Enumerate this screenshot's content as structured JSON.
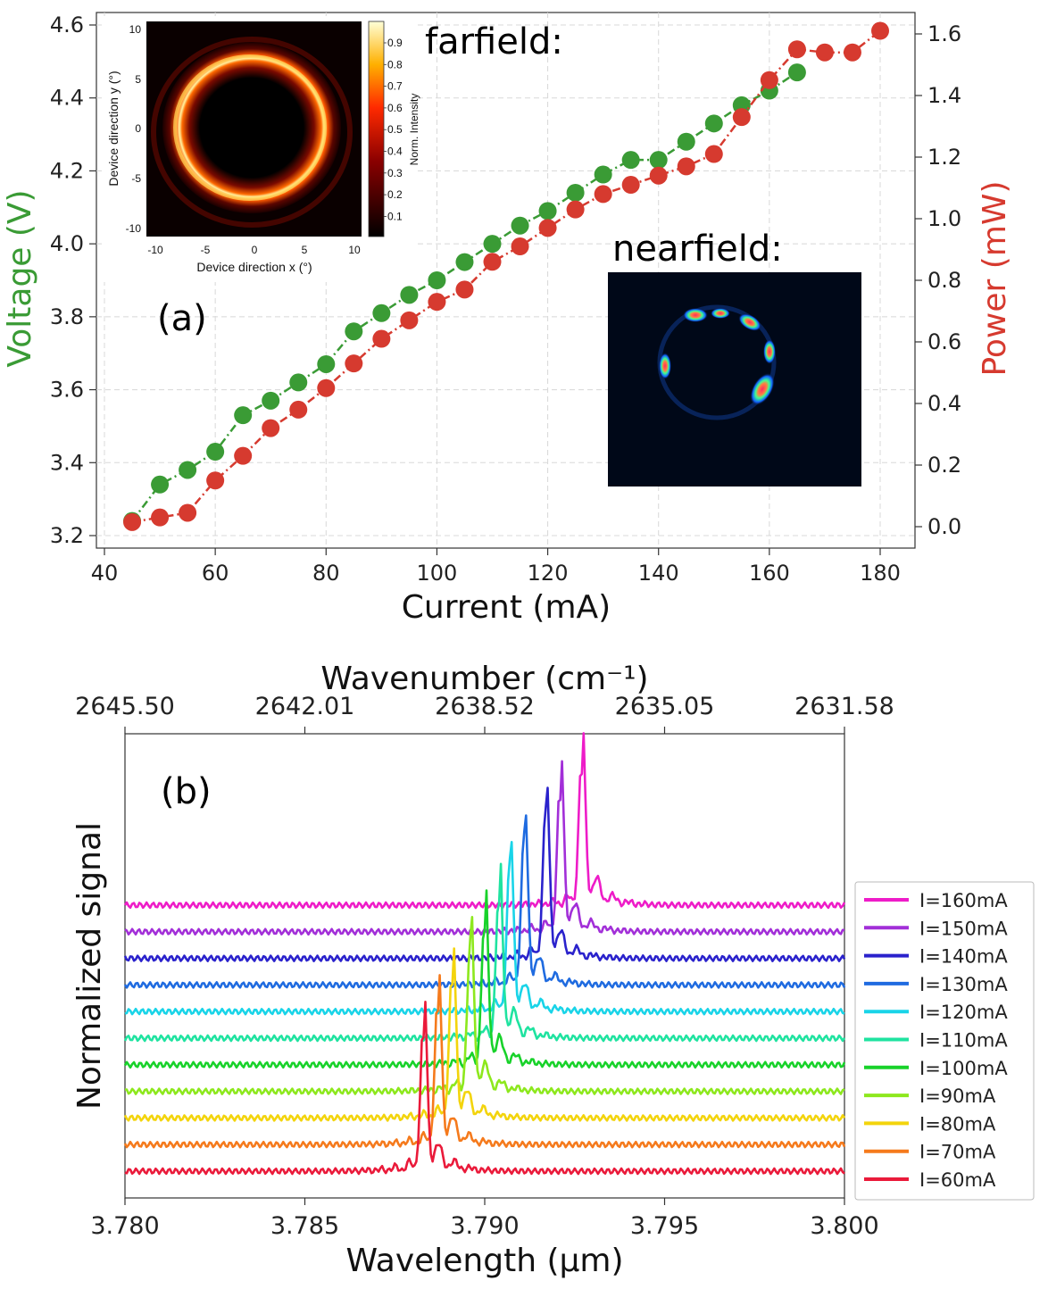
{
  "chart_data": [
    {
      "id": "a",
      "type": "line",
      "panel_label": "(a)",
      "xlabel": "Current (mA)",
      "ylabel_left": "Voltage (V)",
      "ylabel_right": "Power (mW)",
      "xlim": [
        40,
        185
      ],
      "ylim_left": [
        3.2,
        4.6
      ],
      "ylim_right": [
        0.0,
        1.6
      ],
      "xticks": [
        "40",
        "60",
        "80",
        "100",
        "120",
        "140",
        "160",
        "180"
      ],
      "yticks_left": [
        "3.2",
        "3.4",
        "3.6",
        "3.8",
        "4.0",
        "4.2",
        "4.4",
        "4.6"
      ],
      "yticks_right": [
        "0.0",
        "0.2",
        "0.4",
        "0.6",
        "0.8",
        "1.0",
        "1.2",
        "1.4",
        "1.6"
      ],
      "grid": true,
      "colors": {
        "voltage": "#3a9b35",
        "power": "#d63a2f"
      },
      "series": [
        {
          "name": "Voltage",
          "axis": "left",
          "x": [
            45,
            50,
            55,
            60,
            65,
            70,
            75,
            80,
            85,
            90,
            95,
            100,
            105,
            110,
            115,
            120,
            125,
            130,
            135,
            140,
            145,
            150,
            155,
            160,
            165
          ],
          "values": [
            3.24,
            3.34,
            3.38,
            3.43,
            3.53,
            3.57,
            3.62,
            3.67,
            3.76,
            3.81,
            3.86,
            3.9,
            3.95,
            4.0,
            4.05,
            4.09,
            4.14,
            4.19,
            4.23,
            4.23,
            4.28,
            4.33,
            4.38,
            4.42,
            4.47
          ]
        },
        {
          "name": "Power",
          "axis": "right",
          "x": [
            45,
            50,
            55,
            60,
            65,
            70,
            75,
            80,
            85,
            90,
            95,
            100,
            105,
            110,
            115,
            120,
            125,
            130,
            135,
            140,
            145,
            150,
            155,
            160,
            165,
            170,
            175,
            180
          ],
          "values": [
            0.015,
            0.03,
            0.045,
            0.15,
            0.23,
            0.32,
            0.38,
            0.45,
            0.53,
            0.61,
            0.67,
            0.73,
            0.77,
            0.86,
            0.91,
            0.97,
            1.03,
            1.08,
            1.11,
            1.14,
            1.17,
            1.21,
            1.33,
            1.45,
            1.55,
            1.54,
            1.54,
            1.61
          ]
        }
      ],
      "inset_farfield": {
        "title": "farfield:",
        "xlabel": "Device direction x (°)",
        "ylabel": "Device direction y (°)",
        "xticks": [
          "-10",
          "-5",
          "0",
          "5",
          "10"
        ],
        "yticks": [
          "10",
          "5",
          "0",
          "-5",
          "-10"
        ],
        "colorbar_label": "Norm. Intensity",
        "colorbar_ticks": [
          "0.9",
          "0.8",
          "0.7",
          "0.6",
          "0.5",
          "0.4",
          "0.3",
          "0.2",
          "0.1"
        ]
      },
      "inset_nearfield": {
        "title": "nearfield:"
      }
    },
    {
      "id": "b",
      "type": "line",
      "panel_label": "(b)",
      "xlabel": "Wavelength (µm)",
      "ylabel": "Normalized signal",
      "top_xlabel": "Wavenumber (cm⁻¹)",
      "xlim": [
        3.78,
        3.8
      ],
      "xticks": [
        "3.780",
        "3.785",
        "3.790",
        "3.795",
        "3.800"
      ],
      "top_xticks": [
        "2645.50",
        "2642.01",
        "2638.52",
        "2635.05",
        "2631.58"
      ],
      "series": [
        {
          "name": "I=160mA",
          "peak_um": 3.7927,
          "color": "#ee1cc8"
        },
        {
          "name": "I=150mA",
          "peak_um": 3.7921,
          "color": "#a22fd8"
        },
        {
          "name": "I=140mA",
          "peak_um": 3.7917,
          "color": "#2a22cc"
        },
        {
          "name": "I=130mA",
          "peak_um": 3.7911,
          "color": "#1f6be0"
        },
        {
          "name": "I=120mA",
          "peak_um": 3.7907,
          "color": "#19d4e8"
        },
        {
          "name": "I=110mA",
          "peak_um": 3.7904,
          "color": "#1fe3a0"
        },
        {
          "name": "I=100mA",
          "peak_um": 3.79,
          "color": "#18d22a"
        },
        {
          "name": "I=90mA",
          "peak_um": 3.7896,
          "color": "#8de81d"
        },
        {
          "name": "I=80mA",
          "peak_um": 3.7891,
          "color": "#f3d40c"
        },
        {
          "name": "I=70mA",
          "peak_um": 3.7887,
          "color": "#f57a1c"
        },
        {
          "name": "I=60mA",
          "peak_um": 3.7883,
          "color": "#ea1a3a"
        }
      ]
    }
  ]
}
